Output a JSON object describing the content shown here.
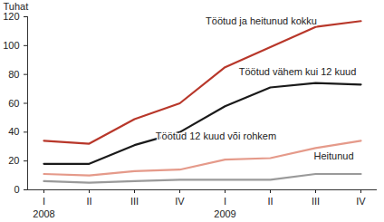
{
  "chart_data": {
    "type": "line",
    "categories": [
      "I",
      "II",
      "III",
      "IV",
      "I",
      "II",
      "III",
      "IV"
    ],
    "year_labels": [
      "2008",
      null,
      null,
      null,
      "2009",
      null,
      null,
      null
    ],
    "y_label": "Tuhat",
    "ylim": [
      0,
      120
    ],
    "yticks": [
      0,
      20,
      40,
      60,
      80,
      100,
      120
    ],
    "grid": false,
    "series": [
      {
        "name": "Töötud ja heitunud kokku",
        "color": "#b8372a",
        "values": [
          34,
          32,
          49,
          60,
          85,
          99,
          113,
          117
        ]
      },
      {
        "name": "Töötud vähem kui 12 kuud",
        "color": "#1a1a1a",
        "values": [
          18,
          18,
          31,
          40,
          58,
          71,
          74,
          73
        ]
      },
      {
        "name": "Töötud 12 kuud või rohkem",
        "color": "#e59a8a",
        "values": [
          11,
          10,
          13,
          14,
          21,
          22,
          29,
          34
        ]
      },
      {
        "name": "Heitunud",
        "color": "#9a9a9a",
        "values": [
          6,
          5,
          6,
          7,
          7,
          7,
          11,
          11
        ]
      }
    ]
  }
}
